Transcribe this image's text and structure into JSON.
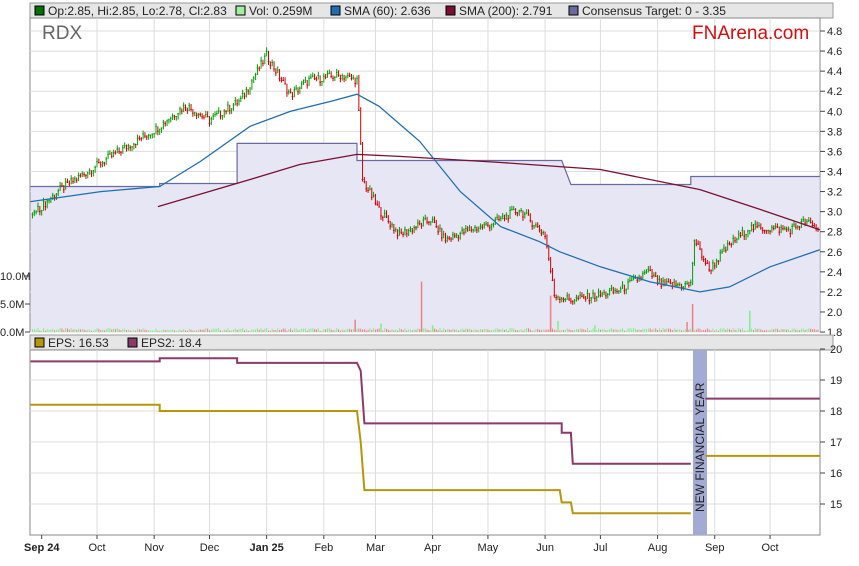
{
  "header": {
    "ohlc": "Op:2.85, Hi:2.85, Lo:2.78, Cl:2.83",
    "vol": "Vol: 0.259M",
    "sma60": "SMA (60): 2.636",
    "sma200": "SMA (200): 2.791",
    "consensus": "Consensus Target: 0 - 3.35"
  },
  "ticker": "RDX",
  "brand": "FNArena.com",
  "lower_header": {
    "eps": "EPS: 16.53",
    "eps2": "EPS2: 18.4"
  },
  "annotation": "NEW FINANCIAL YEAR",
  "colors": {
    "up": "#00a000",
    "down": "#d00000",
    "sma60": "#1f6fb0",
    "sma200": "#7a1030",
    "consensus_line": "#6a6aa0",
    "consensus_fill": "#e6e6f5",
    "eps": "#b8960a",
    "eps2": "#8b3a6b",
    "band": "#a3aad3",
    "vol_up": "#80f080",
    "vol_down": "#f08080"
  },
  "chart_data": [
    {
      "type": "line",
      "title": "RDX",
      "x_unit": "days since 2024-09-01",
      "xtick_labels": [
        {
          "d": 0,
          "label": "Sep 24"
        },
        {
          "d": 30,
          "label": "Oct"
        },
        {
          "d": 61,
          "label": "Nov"
        },
        {
          "d": 91,
          "label": "Dec"
        },
        {
          "d": 122,
          "label": "Jan 25"
        },
        {
          "d": 153,
          "label": "Feb"
        },
        {
          "d": 181,
          "label": "Mar"
        },
        {
          "d": 212,
          "label": "Apr"
        },
        {
          "d": 242,
          "label": "May"
        },
        {
          "d": 273,
          "label": "Jun"
        },
        {
          "d": 303,
          "label": "Jul"
        },
        {
          "d": 334,
          "label": "Aug"
        },
        {
          "d": 365,
          "label": "Sep"
        },
        {
          "d": 395,
          "label": "Oct"
        }
      ],
      "price_ticks": [
        "4.8",
        "4.6",
        "4.4",
        "4.2",
        "4.0",
        "3.8",
        "3.6",
        "3.4",
        "3.2",
        "3.0",
        "2.8",
        "2.6",
        "2.4",
        "2.2",
        "2.0",
        "1.8"
      ],
      "ylim": [
        1.8,
        4.8
      ],
      "volume_ticks": [
        {
          "v": 10,
          "label": "10.0M"
        },
        {
          "v": 5,
          "label": "5.0M"
        },
        {
          "v": 0,
          "label": "0.0M"
        }
      ],
      "close": [
        [
          -6,
          2.95
        ],
        [
          10,
          3.22
        ],
        [
          30,
          3.46
        ],
        [
          42,
          3.6
        ],
        [
          61,
          3.81
        ],
        [
          78,
          4.06
        ],
        [
          91,
          3.91
        ],
        [
          108,
          4.11
        ],
        [
          122,
          4.56
        ],
        [
          135,
          4.16
        ],
        [
          145,
          4.31
        ],
        [
          162,
          4.36
        ],
        [
          171,
          4.31
        ],
        [
          174,
          3.32
        ],
        [
          183,
          3.02
        ],
        [
          194,
          2.77
        ],
        [
          211,
          2.92
        ],
        [
          219,
          2.72
        ],
        [
          232,
          2.82
        ],
        [
          243,
          2.87
        ],
        [
          259,
          3.02
        ],
        [
          273,
          2.77
        ],
        [
          278,
          2.17
        ],
        [
          287,
          2.12
        ],
        [
          303,
          2.17
        ],
        [
          314,
          2.22
        ],
        [
          329,
          2.4
        ],
        [
          336,
          2.27
        ],
        [
          352,
          2.27
        ],
        [
          354,
          2.72
        ],
        [
          362,
          2.42
        ],
        [
          373,
          2.67
        ],
        [
          384,
          2.84
        ],
        [
          406,
          2.82
        ],
        [
          414,
          2.9
        ],
        [
          421,
          2.83
        ]
      ],
      "sma60": [
        [
          -6,
          3.1
        ],
        [
          32,
          3.2
        ],
        [
          64,
          3.25
        ],
        [
          86,
          3.5
        ],
        [
          113,
          3.85
        ],
        [
          135,
          4.0
        ],
        [
          157,
          4.1
        ],
        [
          171,
          4.17
        ],
        [
          183,
          4.05
        ],
        [
          205,
          3.7
        ],
        [
          227,
          3.2
        ],
        [
          249,
          2.85
        ],
        [
          270,
          2.7
        ],
        [
          281,
          2.6
        ],
        [
          303,
          2.45
        ],
        [
          330,
          2.3
        ],
        [
          357,
          2.2
        ],
        [
          373,
          2.25
        ],
        [
          395,
          2.45
        ],
        [
          422,
          2.62
        ]
      ],
      "sma200": [
        [
          63,
          3.05
        ],
        [
          113,
          3.32
        ],
        [
          140,
          3.47
        ],
        [
          171,
          3.57
        ],
        [
          194,
          3.55
        ],
        [
          249,
          3.49
        ],
        [
          303,
          3.42
        ],
        [
          357,
          3.22
        ],
        [
          390,
          3.02
        ],
        [
          422,
          2.82
        ]
      ],
      "consensus_target": [
        [
          -6,
          3.25
        ],
        [
          64,
          3.25
        ],
        [
          64,
          3.28
        ],
        [
          106,
          3.28
        ],
        [
          106,
          3.68
        ],
        [
          171,
          3.68
        ],
        [
          171,
          3.51
        ],
        [
          282,
          3.51
        ],
        [
          287,
          3.27
        ],
        [
          352,
          3.27
        ],
        [
          352,
          3.35
        ],
        [
          422,
          3.35
        ]
      ],
      "volume_spikes_M": [
        [
          170,
          2.2
        ],
        [
          184,
          1.5
        ],
        [
          206,
          9.0
        ],
        [
          212,
          1.2
        ],
        [
          276,
          6.5
        ],
        [
          280,
          2.0
        ],
        [
          353,
          5.0
        ],
        [
          384,
          3.8
        ],
        [
          350,
          1.8
        ],
        [
          300,
          1.2
        ]
      ]
    },
    {
      "type": "line",
      "title": "EPS",
      "x_unit": "days since 2024-09-01",
      "yticks": [
        "20",
        "19",
        "18",
        "17",
        "16",
        "15"
      ],
      "ylim": [
        14.4,
        20
      ],
      "series": [
        {
          "name": "EPS2",
          "points": [
            [
              -6,
              19.6
            ],
            [
              64,
              19.6
            ],
            [
              64,
              19.7
            ],
            [
              106,
              19.7
            ],
            [
              106,
              19.55
            ],
            [
              171,
              19.55
            ],
            [
              173,
              19.3
            ],
            [
              175,
              17.6
            ],
            [
              282,
              17.6
            ],
            [
              282,
              17.3
            ],
            [
              287,
              17.3
            ],
            [
              288,
              16.3
            ],
            [
              352,
              16.3
            ]
          ],
          "points_after": [
            [
              360,
              18.4
            ],
            [
              422,
              18.4
            ]
          ]
        },
        {
          "name": "EPS",
          "points": [
            [
              -6,
              18.2
            ],
            [
              64,
              18.2
            ],
            [
              64,
              18.0
            ],
            [
              106,
              18.0
            ],
            [
              171,
              18.0
            ],
            [
              173,
              17.0
            ],
            [
              175,
              15.45
            ],
            [
              281,
              15.45
            ],
            [
              282,
              15.05
            ],
            [
              287,
              15.05
            ],
            [
              288,
              14.7
            ],
            [
              352,
              14.7
            ]
          ],
          "points_after": [
            [
              360,
              16.55
            ],
            [
              422,
              16.55
            ]
          ]
        }
      ]
    }
  ]
}
